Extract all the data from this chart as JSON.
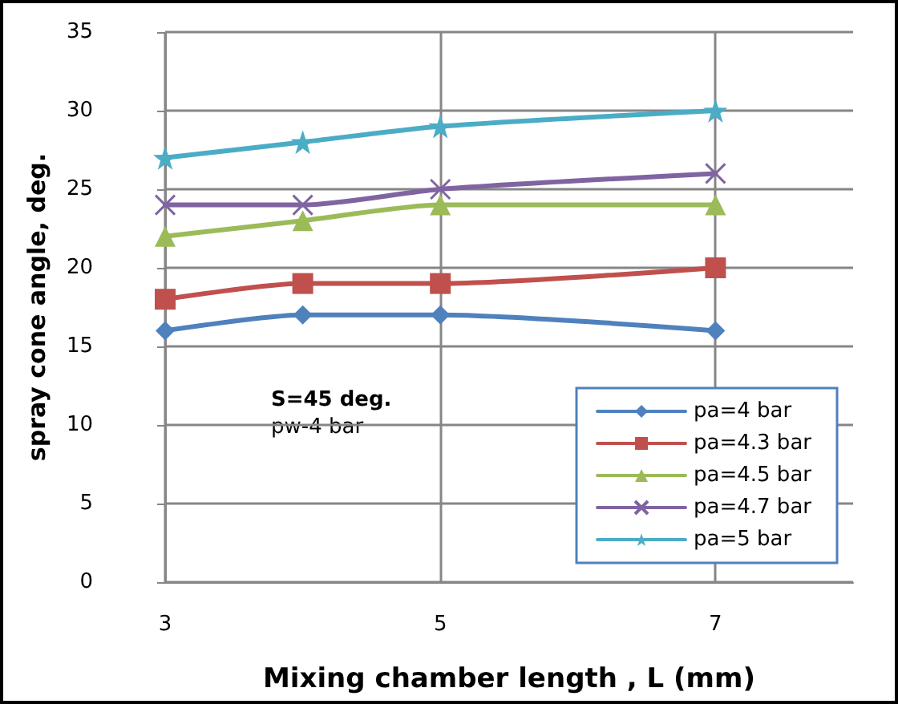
{
  "chart_data": {
    "type": "line",
    "xlabel": "Mixing chamber length , L (mm)",
    "ylabel": "spray cone angle, deg.",
    "x": [
      3,
      4,
      5,
      7
    ],
    "series": [
      {
        "name": "pa=4 bar",
        "color": "#4f81bd",
        "marker": "diamond",
        "values": [
          16,
          17,
          17,
          16
        ]
      },
      {
        "name": "pa=4.3 bar",
        "color": "#c0504d",
        "marker": "square",
        "values": [
          18,
          19,
          19,
          20
        ]
      },
      {
        "name": "pa=4.5 bar",
        "color": "#9bbb59",
        "marker": "triangle",
        "values": [
          22,
          23,
          24,
          24
        ]
      },
      {
        "name": "pa=4.7 bar",
        "color": "#8064a2",
        "marker": "cross",
        "values": [
          24,
          24,
          25,
          26
        ]
      },
      {
        "name": "pa=5 bar",
        "color": "#4bacc6",
        "marker": "star",
        "values": [
          27,
          28,
          29,
          30
        ]
      }
    ],
    "xlim": [
      3,
      8
    ],
    "xticks": [
      3,
      5,
      7
    ],
    "ylim": [
      0,
      35
    ],
    "yticks": [
      0,
      5,
      10,
      15,
      20,
      25,
      30,
      35
    ],
    "annotations": [
      "S=45 deg.",
      "pw-4 bar"
    ],
    "grid": true,
    "legend": "bottom right",
    "line_style": "solid"
  }
}
